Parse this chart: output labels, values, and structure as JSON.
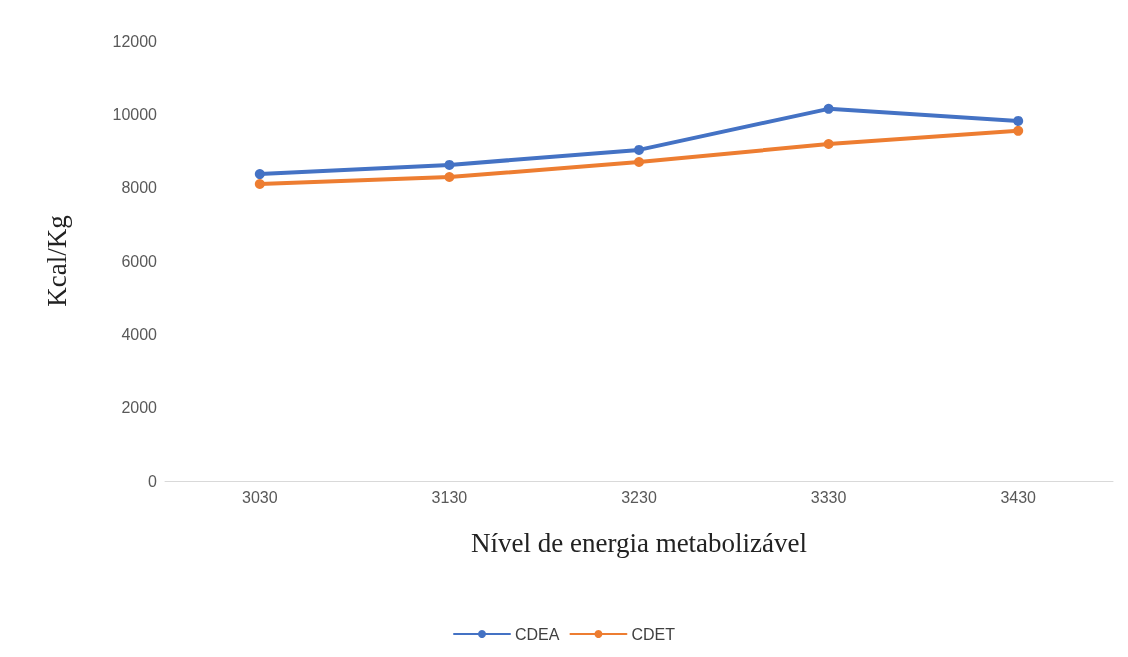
{
  "chart_data": {
    "type": "line",
    "xlabel": "Nível de energia metabolizável",
    "ylabel": "Kcal/Kg",
    "categories": [
      "3030",
      "3130",
      "3230",
      "3330",
      "3430"
    ],
    "series": [
      {
        "name": "CDEA",
        "color": "#4472c4",
        "values": [
          8370,
          8620,
          9030,
          10150,
          9820
        ]
      },
      {
        "name": "CDET",
        "color": "#ed7d31",
        "values": [
          8100,
          8290,
          8700,
          9190,
          9550
        ]
      }
    ],
    "ylim": [
      0,
      12000
    ],
    "yticks": [
      0,
      2000,
      4000,
      6000,
      8000,
      10000,
      12000
    ],
    "grid": false,
    "legend": "bottom",
    "marker": "circle",
    "line_style": "solid"
  }
}
